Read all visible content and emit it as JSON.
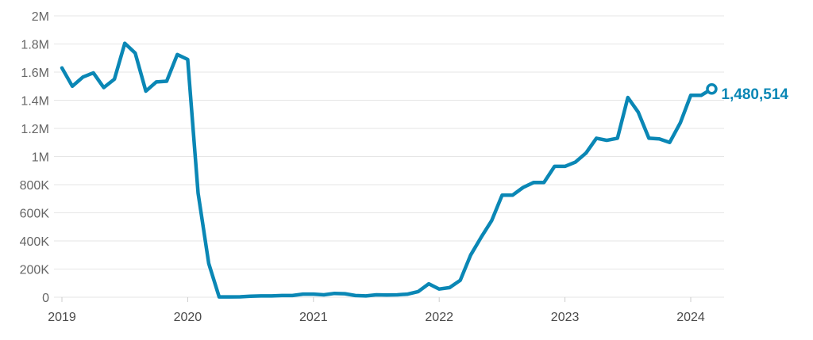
{
  "chart_data": {
    "type": "line",
    "grid": true,
    "legend": "none",
    "colors": {
      "line": "#0a87b5",
      "grid": "#e6e6e6",
      "tick_text": "#666666"
    },
    "ylim": [
      0,
      2000000
    ],
    "xlim": [
      2019,
      2024.2
    ],
    "y_ticks": [
      {
        "value": 0,
        "label": "0"
      },
      {
        "value": 200000,
        "label": "200K"
      },
      {
        "value": 400000,
        "label": "400K"
      },
      {
        "value": 600000,
        "label": "600K"
      },
      {
        "value": 800000,
        "label": "800K"
      },
      {
        "value": 1000000,
        "label": "1M"
      },
      {
        "value": 1200000,
        "label": "1.2M"
      },
      {
        "value": 1400000,
        "label": "1.4M"
      },
      {
        "value": 1600000,
        "label": "1.6M"
      },
      {
        "value": 1800000,
        "label": "1.8M"
      },
      {
        "value": 2000000,
        "label": "2M"
      }
    ],
    "x_ticks": [
      {
        "value": 2019,
        "label": "2019"
      },
      {
        "value": 2020,
        "label": "2020"
      },
      {
        "value": 2021,
        "label": "2021"
      },
      {
        "value": 2022,
        "label": "2022"
      },
      {
        "value": 2023,
        "label": "2023"
      },
      {
        "value": 2024,
        "label": "2024"
      }
    ],
    "series": [
      {
        "points": [
          [
            2019.0,
            1630000
          ],
          [
            2019.083,
            1500000
          ],
          [
            2019.167,
            1565000
          ],
          [
            2019.25,
            1595000
          ],
          [
            2019.333,
            1490000
          ],
          [
            2019.417,
            1550000
          ],
          [
            2019.5,
            1805000
          ],
          [
            2019.583,
            1735000
          ],
          [
            2019.667,
            1465000
          ],
          [
            2019.75,
            1530000
          ],
          [
            2019.833,
            1535000
          ],
          [
            2019.917,
            1725000
          ],
          [
            2020.0,
            1690000
          ],
          [
            2020.083,
            740000
          ],
          [
            2020.167,
            240000
          ],
          [
            2020.25,
            2000
          ],
          [
            2020.333,
            2000
          ],
          [
            2020.417,
            3000
          ],
          [
            2020.5,
            7000
          ],
          [
            2020.583,
            9000
          ],
          [
            2020.667,
            9000
          ],
          [
            2020.75,
            12000
          ],
          [
            2020.833,
            12000
          ],
          [
            2020.917,
            22000
          ],
          [
            2021.0,
            22000
          ],
          [
            2021.083,
            17000
          ],
          [
            2021.167,
            27000
          ],
          [
            2021.25,
            25000
          ],
          [
            2021.333,
            12000
          ],
          [
            2021.417,
            9000
          ],
          [
            2021.5,
            17000
          ],
          [
            2021.583,
            15000
          ],
          [
            2021.667,
            17000
          ],
          [
            2021.75,
            22000
          ],
          [
            2021.833,
            40000
          ],
          [
            2021.917,
            95000
          ],
          [
            2022.0,
            58000
          ],
          [
            2022.083,
            68000
          ],
          [
            2022.167,
            120000
          ],
          [
            2022.25,
            300000
          ],
          [
            2022.333,
            425000
          ],
          [
            2022.417,
            545000
          ],
          [
            2022.5,
            725000
          ],
          [
            2022.583,
            725000
          ],
          [
            2022.667,
            780000
          ],
          [
            2022.75,
            815000
          ],
          [
            2022.833,
            815000
          ],
          [
            2022.917,
            930000
          ],
          [
            2023.0,
            930000
          ],
          [
            2023.083,
            960000
          ],
          [
            2023.167,
            1025000
          ],
          [
            2023.25,
            1130000
          ],
          [
            2023.333,
            1115000
          ],
          [
            2023.417,
            1130000
          ],
          [
            2023.5,
            1420000
          ],
          [
            2023.583,
            1315000
          ],
          [
            2023.667,
            1130000
          ],
          [
            2023.75,
            1125000
          ],
          [
            2023.833,
            1100000
          ],
          [
            2023.917,
            1240000
          ],
          [
            2024.0,
            1435000
          ],
          [
            2024.083,
            1435000
          ],
          [
            2024.167,
            1480514
          ]
        ]
      }
    ],
    "end_label": "1,480,514"
  }
}
